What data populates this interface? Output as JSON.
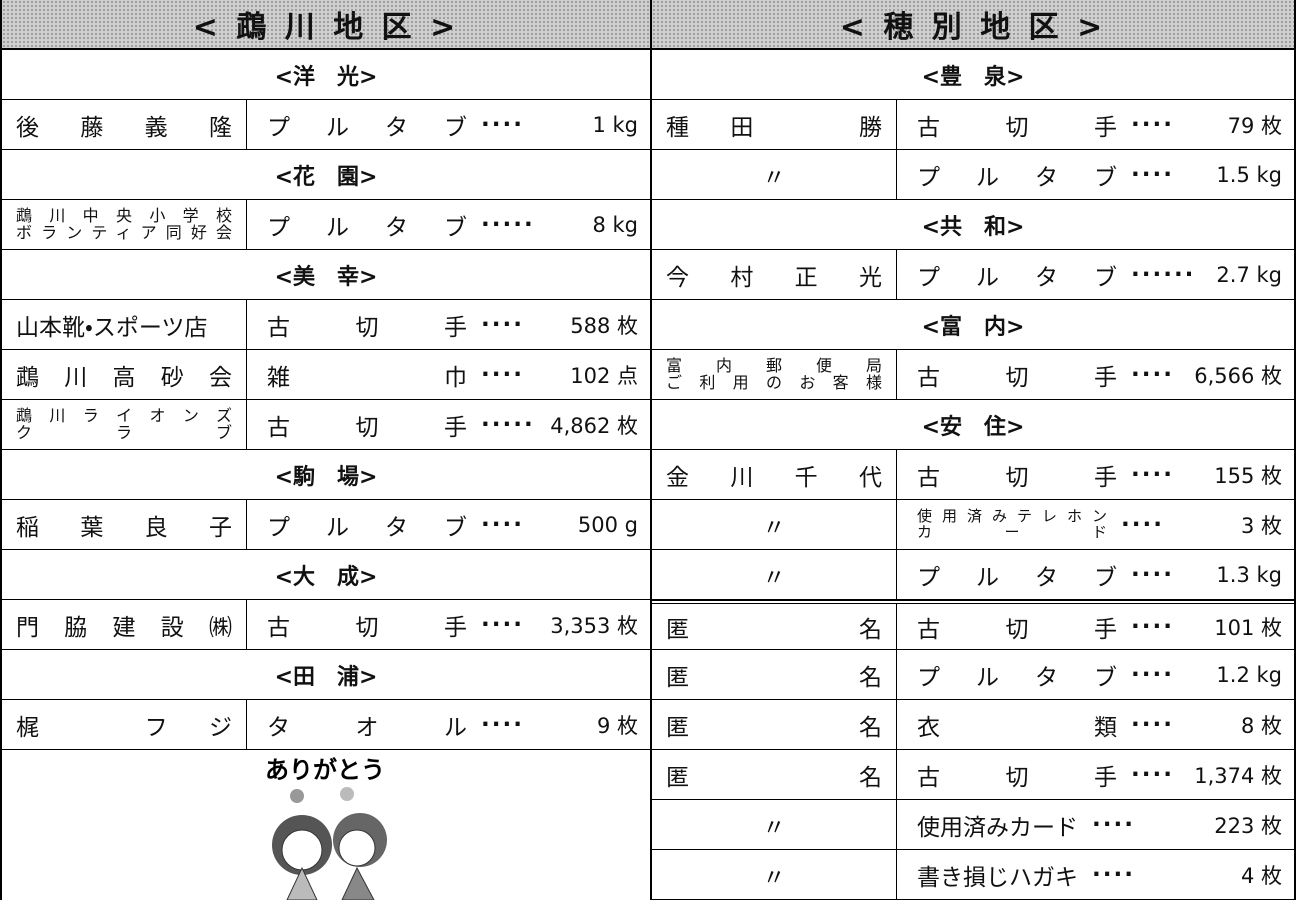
{
  "left": {
    "title": "< 鵡 川 地 区 >",
    "rows": [
      {
        "section": "<洋　光>"
      },
      {
        "donor": "後藤義隆",
        "item": "プルタブ",
        "leader": "····",
        "amount": "1 kg"
      },
      {
        "section": "<花　園>"
      },
      {
        "donor": [
          "鵡川中央小学校",
          "ボランティア同好会"
        ],
        "item": "プルタブ",
        "leader": "·····",
        "amount": "8 kg"
      },
      {
        "section": "<美　幸>"
      },
      {
        "donor": "山本靴・スポーツ店",
        "item": "古切手",
        "leader": "····",
        "amount": "588 枚"
      },
      {
        "donor": "鵡川高砂会",
        "item": "雑巾",
        "leader": "····",
        "amount": "102 点"
      },
      {
        "donor": [
          "鵡川ライオンズ",
          "クラブ"
        ],
        "item": "古切手",
        "leader": "·····",
        "amount": "4,862 枚"
      },
      {
        "section": "<駒　場>"
      },
      {
        "donor": "稲葉良子",
        "item": "プルタブ",
        "leader": "····",
        "amount": "500 g"
      },
      {
        "section": "<大　成>"
      },
      {
        "donor": "門脇建設㈱",
        "item": "古切手",
        "leader": "····",
        "amount": "3,353 枚"
      },
      {
        "section": "<田　浦>"
      },
      {
        "donor": "梶　フジ",
        "item": "タオル",
        "leader": "····",
        "amount": "9 枚"
      }
    ],
    "footer_text": "ありがとう"
  },
  "right": {
    "title": "< 穂 別 地 区 >",
    "rows": [
      {
        "section": "<豊　泉>"
      },
      {
        "donor": "種田　勝",
        "item": "古切手",
        "leader": "····",
        "amount": "79 枚"
      },
      {
        "donor": "〃",
        "item": "プルタブ",
        "leader": "····",
        "amount": "1.5 kg"
      },
      {
        "section": "<共　和>"
      },
      {
        "donor": "今村正光",
        "item": "プルタブ",
        "leader": "······",
        "amount": "2.7 kg"
      },
      {
        "section": "<富　内>"
      },
      {
        "donor": [
          "富内郵便局",
          "ご利用のお客様"
        ],
        "item": "古切手",
        "leader": "····",
        "amount": "6,566 枚"
      },
      {
        "section": "<安　住>"
      },
      {
        "donor": "金川千代",
        "item": "古切手",
        "leader": "····",
        "amount": "155 枚"
      },
      {
        "donor": "〃",
        "item": [
          "使用済みテレホン",
          "カード"
        ],
        "leader": "····",
        "amount": "3 枚"
      },
      {
        "donor": "〃",
        "item": "プルタブ",
        "leader": "····",
        "amount": "1.3 kg"
      }
    ],
    "more_rows": [
      {
        "donor": "匿名",
        "item": "古切手",
        "leader": "····",
        "amount": "101 枚"
      },
      {
        "donor": "匿名",
        "item": "プルタブ",
        "leader": "····",
        "amount": "1.2 kg"
      },
      {
        "donor": "匿名",
        "item": "衣類",
        "leader": "····",
        "amount": "8 枚"
      },
      {
        "donor": "匿名",
        "item": "古切手",
        "leader": "····",
        "amount": "1,374 枚"
      },
      {
        "donor": "〃",
        "item": "使用済みカード",
        "leader": "····",
        "amount": "223 枚"
      },
      {
        "donor": "〃",
        "item": "書き損じハガキ",
        "leader": "····",
        "amount": "4 枚"
      }
    ]
  }
}
